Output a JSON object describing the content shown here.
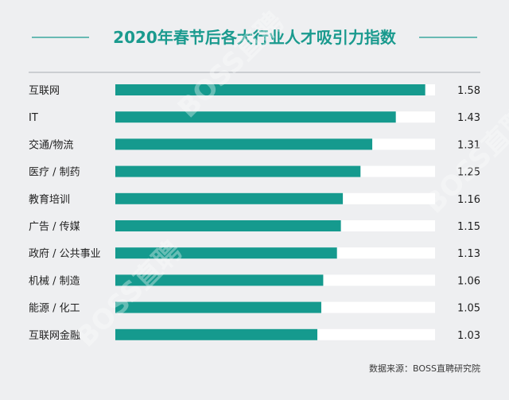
{
  "chart_data": {
    "type": "bar",
    "orientation": "horizontal",
    "title": "2020年春节后各大行业人才吸引力指数",
    "categories": [
      "互联网",
      "IT",
      "交通/物流",
      "医疗 / 制药",
      "教育培训",
      "广告 / 传媒",
      "政府 / 公共事业",
      "机械 / 制造",
      "能源 / 化工",
      "互联网金融"
    ],
    "values": [
      1.58,
      1.43,
      1.31,
      1.25,
      1.16,
      1.15,
      1.13,
      1.06,
      1.05,
      1.03
    ],
    "value_labels": [
      "1.58",
      "1.43",
      "1.31",
      "1.25",
      "1.16",
      "1.15",
      "1.13",
      "1.06",
      "1.05",
      "1.03"
    ],
    "xlim": [
      0,
      1.63
    ],
    "grid": false,
    "legend": "none",
    "colors": {
      "bar": "#159a8e",
      "track": "#ffffff",
      "title": "#1a9a8e",
      "background": "#eeeff1"
    }
  },
  "source": "数据来源：BOSS直聘研究院",
  "watermark": "BOSS直聘"
}
